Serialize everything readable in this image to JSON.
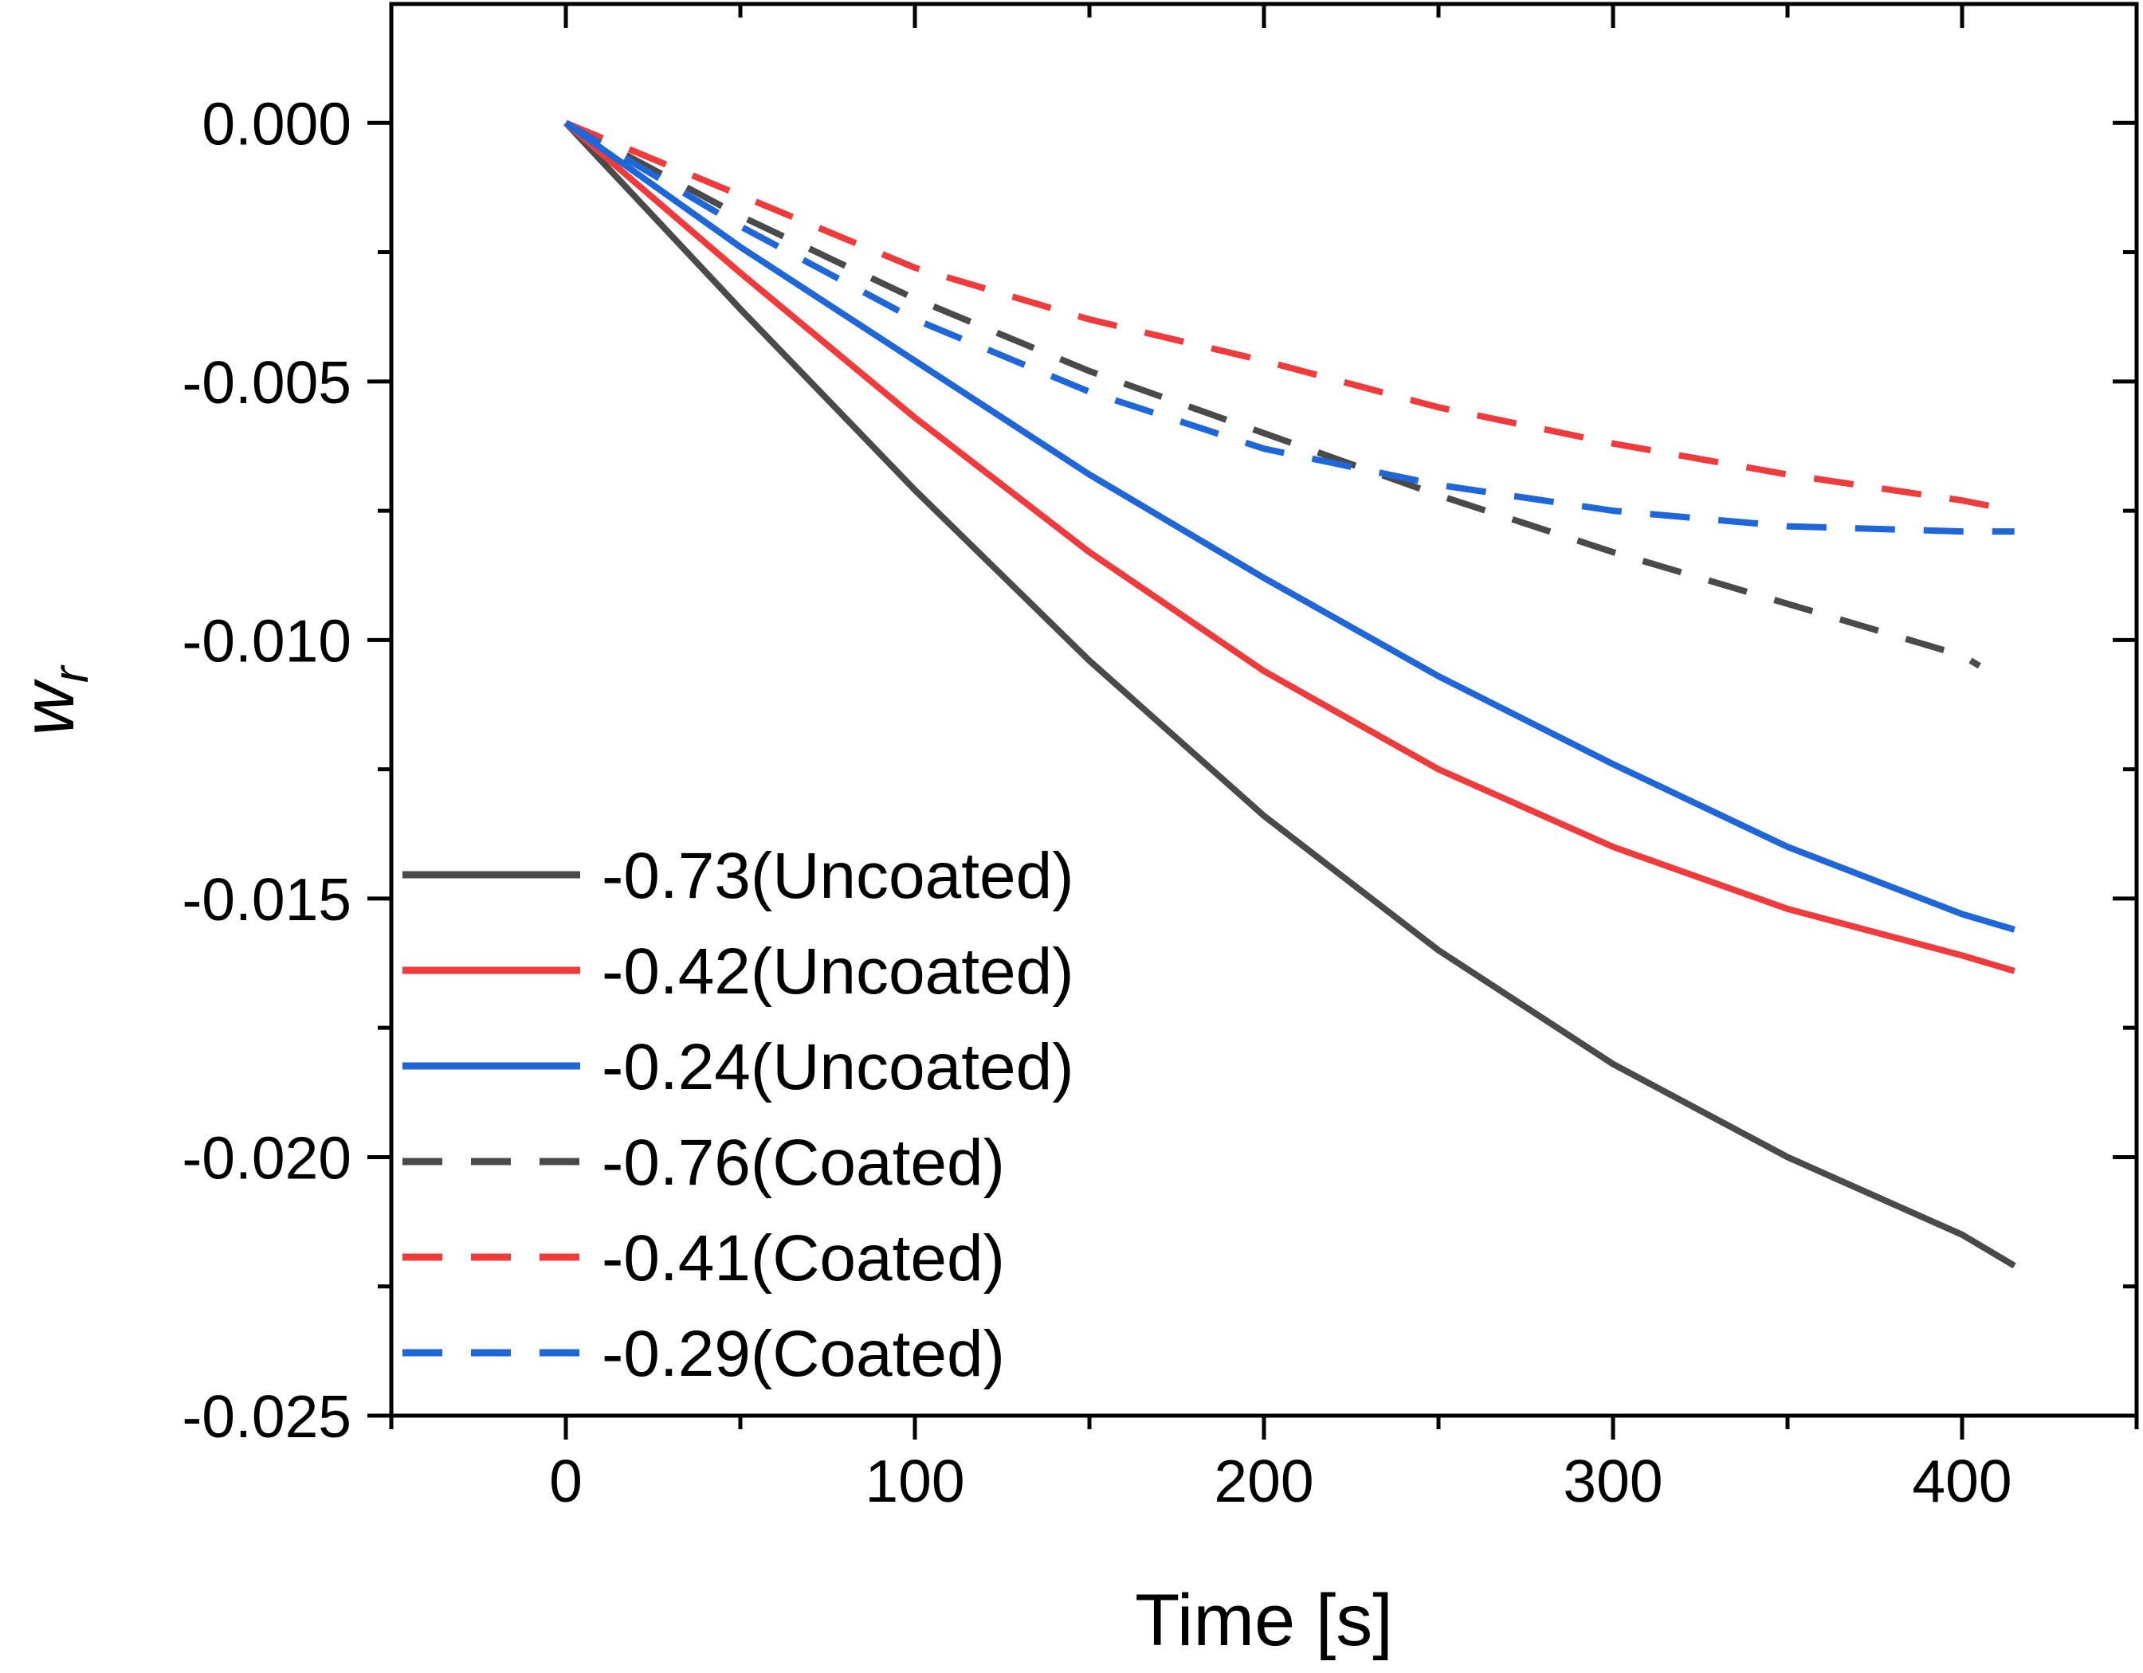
{
  "chart_data": {
    "type": "line",
    "title": "",
    "xlabel": "Time [s]",
    "ylabel": "w",
    "ylabel_subscript": "r",
    "xlim": [
      -50,
      450
    ],
    "ylim": [
      -0.025,
      0.0023
    ],
    "xticks": [
      0,
      100,
      200,
      300,
      400
    ],
    "xtick_labels": [
      "0",
      "100",
      "200",
      "300",
      "400"
    ],
    "yticks": [
      0.0,
      -0.005,
      -0.01,
      -0.015,
      -0.02,
      -0.025
    ],
    "ytick_labels": [
      "0.000",
      "-0.005",
      "-0.010",
      "-0.015",
      "-0.020",
      "-0.025"
    ],
    "grid": false,
    "legend_position": "lower-left",
    "x": [
      0,
      50,
      100,
      150,
      200,
      250,
      300,
      350,
      400,
      415
    ],
    "series": [
      {
        "name": "-0.73(Uncoated)",
        "color": "#4a4a4a",
        "style": "solid",
        "x": [
          0,
          50,
          100,
          150,
          200,
          250,
          300,
          350,
          400,
          415
        ],
        "values": [
          0.0,
          -0.0036,
          -0.0071,
          -0.0104,
          -0.0134,
          -0.016,
          -0.0182,
          -0.02,
          -0.0215,
          -0.0221
        ]
      },
      {
        "name": "-0.42(Uncoated)",
        "color": "#ef3b3b",
        "style": "solid",
        "x": [
          0,
          50,
          100,
          150,
          200,
          250,
          300,
          350,
          400,
          415
        ],
        "values": [
          0.0,
          -0.0029,
          -0.0057,
          -0.0083,
          -0.0106,
          -0.0125,
          -0.014,
          -0.0152,
          -0.0161,
          -0.0164
        ]
      },
      {
        "name": "-0.24(Uncoated)",
        "color": "#1f66d8",
        "style": "solid",
        "x": [
          0,
          50,
          100,
          150,
          200,
          250,
          300,
          350,
          400,
          415
        ],
        "values": [
          0.0,
          -0.0024,
          -0.0046,
          -0.0068,
          -0.0088,
          -0.0107,
          -0.0124,
          -0.014,
          -0.0153,
          -0.0156
        ]
      },
      {
        "name": "-0.76(Coated)",
        "color": "#4a4a4a",
        "style": "dashed",
        "x": [
          0,
          50,
          100,
          150,
          200,
          250,
          300,
          350,
          400,
          405
        ],
        "values": [
          0.0,
          -0.0018,
          -0.0034,
          -0.0048,
          -0.006,
          -0.0072,
          -0.0083,
          -0.0093,
          -0.0103,
          -0.0105
        ]
      },
      {
        "name": "-0.41(Coated)",
        "color": "#ef3b3b",
        "style": "dashed",
        "x": [
          0,
          50,
          100,
          150,
          200,
          250,
          300,
          350,
          400,
          415
        ],
        "values": [
          0.0,
          -0.0014,
          -0.0028,
          -0.0038,
          -0.0046,
          -0.0055,
          -0.0062,
          -0.0068,
          -0.0073,
          -0.0075
        ]
      },
      {
        "name": "-0.29(Coated)",
        "color": "#1f66d8",
        "style": "dashed",
        "x": [
          0,
          50,
          100,
          150,
          200,
          250,
          300,
          350,
          400,
          415
        ],
        "values": [
          0.0,
          -0.002,
          -0.0038,
          -0.0052,
          -0.0063,
          -0.007,
          -0.0075,
          -0.0078,
          -0.0079,
          -0.0079
        ]
      }
    ]
  }
}
